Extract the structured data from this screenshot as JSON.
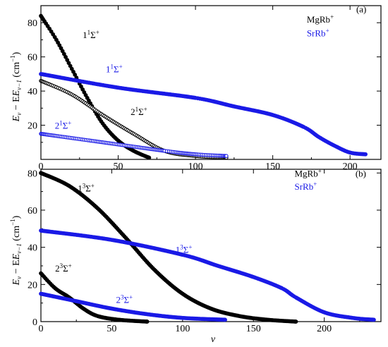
{
  "figure": {
    "xlabel": "v",
    "ylabel_main": "E",
    "ylabel_sub1": "v",
    "ylabel_mid": " − E",
    "ylabel_sub2": "v−1",
    "ylabel_unit": " (cm",
    "ylabel_exp": "−1",
    "ylabel_close": ")"
  },
  "colors": {
    "mgrb": "#000000",
    "srrb": "#1a1ae6"
  },
  "chart_data": [
    {
      "type": "scatter",
      "panel_label": "(a)",
      "xlim": [
        0,
        220
      ],
      "ylim": [
        0,
        90
      ],
      "xticks": [
        "0",
        "50",
        "100",
        "150",
        "200"
      ],
      "yticks": [
        "20",
        "40",
        "60",
        "80"
      ],
      "legend": [
        {
          "text": "MgRb",
          "sup": "+",
          "color": "#000000"
        },
        {
          "text": "SrRb",
          "sup": "+",
          "color": "#1a1ae6"
        }
      ],
      "series": [
        {
          "id": "a-mg-1",
          "color": "#000000",
          "style": "filled",
          "curve_label": {
            "pre": "1",
            "sup": "1",
            "post": "Σ",
            "post_sup": "+"
          },
          "points": [
            [
              0,
              84
            ],
            [
              10,
              70
            ],
            [
              20,
              53
            ],
            [
              30,
              36
            ],
            [
              40,
              21
            ],
            [
              50,
              11
            ],
            [
              60,
              5
            ],
            [
              70,
              1
            ]
          ]
        },
        {
          "id": "a-mg-2",
          "color": "#000000",
          "style": "open",
          "curve_label": {
            "pre": "2",
            "sup": "1",
            "post": "Σ",
            "post_sup": "+"
          },
          "points": [
            [
              0,
              46
            ],
            [
              20,
              38
            ],
            [
              40,
              26
            ],
            [
              60,
              15
            ],
            [
              80,
              5
            ],
            [
              100,
              2
            ],
            [
              120,
              1
            ]
          ]
        },
        {
          "id": "a-sr-1",
          "color": "#1a1ae6",
          "style": "filled",
          "curve_label": {
            "pre": "1",
            "sup": "1",
            "post": "Σ",
            "post_sup": "+"
          },
          "points": [
            [
              0,
              50
            ],
            [
              50,
              42
            ],
            [
              100,
              36
            ],
            [
              125,
              31
            ],
            [
              150,
              26
            ],
            [
              170,
              19
            ],
            [
              180,
              13
            ],
            [
              190,
              8
            ],
            [
              200,
              4
            ],
            [
              210,
              3
            ]
          ]
        },
        {
          "id": "a-sr-2",
          "color": "#1a1ae6",
          "style": "open",
          "curve_label": {
            "pre": "2",
            "sup": "1",
            "post": "Σ",
            "post_sup": "+"
          },
          "points": [
            [
              0,
              15
            ],
            [
              40,
              10
            ],
            [
              80,
              5
            ],
            [
              100,
              3
            ],
            [
              120,
              2
            ]
          ]
        }
      ]
    },
    {
      "type": "scatter",
      "panel_label": "(b)",
      "xlim": [
        0,
        240
      ],
      "ylim": [
        0,
        82
      ],
      "xticks": [
        "0",
        "50",
        "100",
        "150",
        "200"
      ],
      "yticks": [
        "0",
        "20",
        "40",
        "60",
        "80"
      ],
      "legend": [
        {
          "text": "MgRb",
          "sup": "+",
          "color": "#000000"
        },
        {
          "text": "SrRb",
          "sup": "+",
          "color": "#1a1ae6"
        }
      ],
      "series": [
        {
          "id": "b-mg-1",
          "color": "#000000",
          "style": "filled",
          "curve_label": {
            "pre": "1",
            "sup": "3",
            "post": "Σ",
            "post_sup": "+"
          },
          "points": [
            [
              0,
              80
            ],
            [
              20,
              73
            ],
            [
              40,
              61
            ],
            [
              60,
              45
            ],
            [
              80,
              28
            ],
            [
              100,
              15
            ],
            [
              120,
              7
            ],
            [
              140,
              3
            ],
            [
              160,
              1
            ],
            [
              180,
              0
            ]
          ]
        },
        {
          "id": "b-mg-2",
          "color": "#000000",
          "style": "filled",
          "curve_label": {
            "pre": "2",
            "sup": "3",
            "post": "Σ",
            "post_sup": "+"
          },
          "points": [
            [
              0,
              26
            ],
            [
              10,
              18
            ],
            [
              20,
              13
            ],
            [
              30,
              7
            ],
            [
              40,
              3
            ],
            [
              55,
              1
            ],
            [
              75,
              0
            ]
          ]
        },
        {
          "id": "b-sr-1",
          "color": "#1a1ae6",
          "style": "filled",
          "curve_label": {
            "pre": "1",
            "sup": "3",
            "post": "Σ",
            "post_sup": "+"
          },
          "points": [
            [
              0,
              49
            ],
            [
              50,
              44
            ],
            [
              100,
              36
            ],
            [
              125,
              30
            ],
            [
              150,
              24
            ],
            [
              170,
              18
            ],
            [
              180,
              13
            ],
            [
              200,
              5
            ],
            [
              220,
              2
            ],
            [
              235,
              1
            ]
          ]
        },
        {
          "id": "b-sr-2",
          "color": "#1a1ae6",
          "style": "filled",
          "curve_label": {
            "pre": "2",
            "sup": "3",
            "post": "Σ",
            "post_sup": "+"
          },
          "points": [
            [
              0,
              15
            ],
            [
              25,
              11
            ],
            [
              50,
              7
            ],
            [
              75,
              4
            ],
            [
              100,
              2
            ],
            [
              130,
              1
            ]
          ]
        }
      ]
    }
  ]
}
